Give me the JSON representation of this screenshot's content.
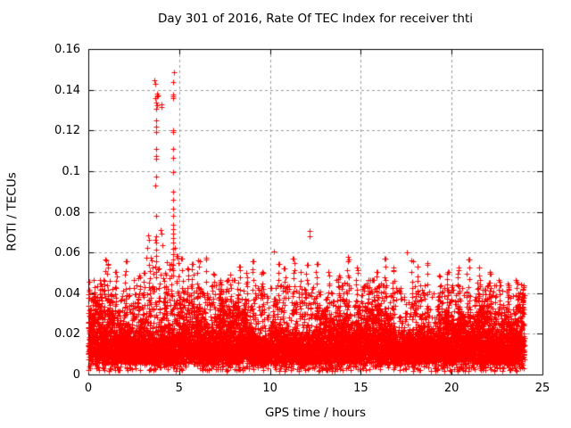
{
  "chart_data": {
    "type": "scatter",
    "title": "Day 301 of 2016, Rate Of TEC Index for receiver thti",
    "xlabel": "GPS time / hours",
    "ylabel": "ROTI / TECUs",
    "xlim": [
      0,
      25
    ],
    "ylim": [
      0,
      0.16
    ],
    "xtick_values": [
      0,
      5,
      10,
      15,
      20,
      25
    ],
    "xtick_labels": [
      "0",
      "5",
      "10",
      "15",
      "20",
      "25"
    ],
    "ytick_values": [
      0,
      0.02,
      0.04,
      0.06,
      0.08,
      0.1,
      0.12,
      0.14,
      0.16
    ],
    "ytick_labels": [
      "0",
      "0.02",
      "0.04",
      "0.06",
      "0.08",
      "0.1",
      "0.12",
      "0.14",
      "0.16"
    ],
    "grid": true,
    "legend_position": "none",
    "marker": "plus",
    "marker_size_px": 7,
    "colors": {
      "marker": "#ff0000",
      "grid": "#999999",
      "axis": "#000000",
      "background": "#ffffff",
      "text": "#000000"
    },
    "series_name": "ROTI",
    "time_coverage_hours": [
      0,
      24
    ],
    "dense_band": {
      "seed": 1301,
      "samples_per_hour": 280,
      "base_floor": 0.0045,
      "base_uniform": 0.0035,
      "core_sigma": 0.0085,
      "extra_prob": 0.3,
      "extra_sigma": 0.0075,
      "ragged_top_prob": 0.045,
      "ragged_top_min": 0.027,
      "ragged_top_span": 0.017,
      "fringe_prob": 0.035,
      "fringe_min": 0.0018,
      "fringe_span": 0.0042,
      "clamp_min": 0.0015,
      "clamp_max": 0.0465,
      "second_point_prob": 0.55,
      "third_point_prob": 0.18
    },
    "envelope_peaks": [
      [
        0.05,
        0.0455
      ],
      [
        0.35,
        0.0405
      ],
      [
        0.7,
        0.0445
      ],
      [
        0.95,
        0.0565
      ],
      [
        1.1,
        0.0545
      ],
      [
        1.5,
        0.0505
      ],
      [
        2.05,
        0.0555
      ],
      [
        2.5,
        0.0465
      ],
      [
        2.8,
        0.0485
      ],
      [
        3.05,
        0.05
      ],
      [
        3.35,
        0.054
      ],
      [
        3.9,
        0.052
      ],
      [
        4.2,
        0.05
      ],
      [
        4.55,
        0.0545
      ],
      [
        4.9,
        0.0585
      ],
      [
        5.15,
        0.057
      ],
      [
        5.45,
        0.052
      ],
      [
        5.75,
        0.0545
      ],
      [
        6.05,
        0.056
      ],
      [
        6.5,
        0.0575
      ],
      [
        6.9,
        0.0495
      ],
      [
        7.25,
        0.0465
      ],
      [
        7.8,
        0.049
      ],
      [
        8.3,
        0.053
      ],
      [
        8.7,
        0.05
      ],
      [
        9.1,
        0.0555
      ],
      [
        9.6,
        0.0505
      ],
      [
        10.45,
        0.0545
      ],
      [
        10.8,
        0.052
      ],
      [
        11.3,
        0.057
      ],
      [
        11.7,
        0.0505
      ],
      [
        12.05,
        0.054
      ],
      [
        12.6,
        0.0545
      ],
      [
        13.2,
        0.0505
      ],
      [
        13.8,
        0.0485
      ],
      [
        14.3,
        0.058
      ],
      [
        14.8,
        0.0525
      ],
      [
        15.4,
        0.0465
      ],
      [
        15.9,
        0.0505
      ],
      [
        16.3,
        0.057
      ],
      [
        16.8,
        0.0525
      ],
      [
        17.8,
        0.056
      ],
      [
        18.1,
        0.053
      ],
      [
        18.65,
        0.055
      ],
      [
        19.3,
        0.0485
      ],
      [
        19.8,
        0.0505
      ],
      [
        20.4,
        0.0525
      ],
      [
        20.9,
        0.0565
      ],
      [
        21.5,
        0.0525
      ],
      [
        22.1,
        0.0505
      ],
      [
        22.6,
        0.0465
      ],
      [
        23.1,
        0.0445
      ],
      [
        23.6,
        0.0455
      ],
      [
        23.95,
        0.044
      ]
    ],
    "spike_cluster_points": [
      [
        3.63,
        0.1445
      ],
      [
        3.67,
        0.1431
      ],
      [
        3.8,
        0.1383
      ],
      [
        3.81,
        0.1371
      ],
      [
        3.79,
        0.1366
      ],
      [
        3.7,
        0.1357
      ],
      [
        3.72,
        0.1337
      ],
      [
        3.76,
        0.1324
      ],
      [
        3.74,
        0.1305
      ],
      [
        4.04,
        0.133
      ],
      [
        4.02,
        0.1313
      ],
      [
        3.71,
        0.1248
      ],
      [
        3.73,
        0.1217
      ],
      [
        3.72,
        0.1191
      ],
      [
        3.75,
        0.1108
      ],
      [
        3.71,
        0.1076
      ],
      [
        3.74,
        0.1059
      ],
      [
        3.73,
        0.0972
      ],
      [
        3.7,
        0.0929
      ],
      [
        3.73,
        0.0779
      ],
      [
        3.72,
        0.0678
      ],
      [
        3.74,
        0.0649
      ],
      [
        3.7,
        0.066
      ],
      [
        4.71,
        0.1487
      ],
      [
        4.67,
        0.1438
      ],
      [
        4.66,
        0.1376
      ],
      [
        4.68,
        0.1369
      ],
      [
        4.67,
        0.1361
      ],
      [
        4.65,
        0.1199
      ],
      [
        4.67,
        0.1193
      ],
      [
        4.69,
        0.1109
      ],
      [
        4.66,
        0.1066
      ],
      [
        4.68,
        0.0993
      ],
      [
        4.67,
        0.0898
      ],
      [
        4.66,
        0.0861
      ],
      [
        4.69,
        0.0817
      ],
      [
        4.67,
        0.078
      ],
      [
        4.68,
        0.0737
      ],
      [
        4.66,
        0.0715
      ],
      [
        4.67,
        0.0693
      ],
      [
        4.68,
        0.0671
      ],
      [
        4.66,
        0.0649
      ],
      [
        3.71,
        0.0612
      ],
      [
        3.73,
        0.0585
      ],
      [
        3.72,
        0.0558
      ],
      [
        3.7,
        0.0532
      ],
      [
        3.74,
        0.0505
      ],
      [
        3.72,
        0.0478
      ],
      [
        4.66,
        0.0618
      ],
      [
        4.68,
        0.0592
      ],
      [
        4.67,
        0.0565
      ],
      [
        4.65,
        0.0538
      ],
      [
        4.69,
        0.0512
      ],
      [
        4.67,
        0.0485
      ],
      [
        3.3,
        0.0686
      ],
      [
        3.34,
        0.0662
      ],
      [
        3.25,
        0.0621
      ],
      [
        3.21,
        0.0576
      ],
      [
        3.42,
        0.0574
      ],
      [
        3.49,
        0.0563
      ],
      [
        3.55,
        0.0524
      ],
      [
        3.6,
        0.0494
      ],
      [
        4.0,
        0.071
      ],
      [
        4.05,
        0.0694
      ],
      [
        4.1,
        0.0634
      ],
      [
        4.3,
        0.0553
      ],
      [
        4.45,
        0.0519
      ],
      [
        4.75,
        0.0623
      ],
      [
        4.85,
        0.0582
      ]
    ],
    "isolated_outliers": [
      [
        12.17,
        0.0706
      ],
      [
        12.18,
        0.0679
      ],
      [
        10.21,
        0.0604
      ],
      [
        17.55,
        0.0602
      ]
    ]
  }
}
